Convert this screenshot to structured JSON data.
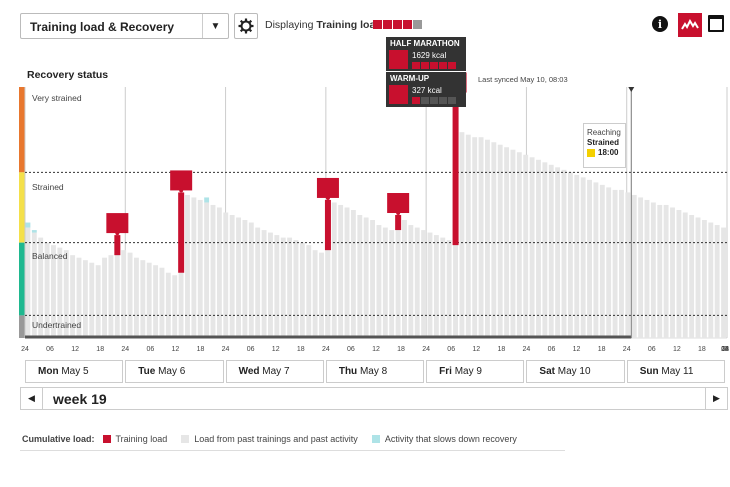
{
  "header": {
    "dropdown_label": "Training load & Recovery",
    "displaying_prefix": "Displaying",
    "displaying_value": "Training load",
    "display_level": 4,
    "display_level_max": 5,
    "colors": {
      "accent": "#c8102e",
      "inactive": "#999999"
    }
  },
  "chart_data": {
    "type": "bar",
    "title": "Recovery status",
    "last_synced": "Last synced May 10, 08:03",
    "zones": [
      "Very strained",
      "Strained",
      "Balanced",
      "Undertrained"
    ],
    "zone_colors": [
      "#e8772e",
      "#f4e04a",
      "#1fb88f",
      "#999999"
    ],
    "x_tick_labels": [
      "24",
      "06",
      "12",
      "18",
      "24",
      "06",
      "12",
      "18",
      "24",
      "06",
      "12",
      "18",
      "24",
      "06",
      "12",
      "18",
      "24",
      "06",
      "12",
      "18",
      "24",
      "06",
      "12",
      "18",
      "24",
      "06",
      "12",
      "18",
      "24",
      "06",
      "12",
      "18",
      "2"
    ],
    "days": [
      "Mon May 5",
      "Tue May 6",
      "Wed May 7",
      "Thu May 8",
      "Fri May 9",
      "Sat May 10",
      "Sun May 11"
    ],
    "ylim": [
      0,
      100
    ],
    "series": [
      {
        "name": "Load from past trainings and past activity",
        "color": "#e6e6e6",
        "values": [
          44,
          42,
          40,
          38,
          37,
          36,
          35,
          33,
          32,
          31,
          30,
          29,
          32,
          33,
          36,
          35,
          34,
          32,
          31,
          30,
          29,
          28,
          26,
          25,
          55,
          57,
          56,
          55,
          54,
          53,
          52,
          50,
          49,
          48,
          47,
          46,
          44,
          43,
          42,
          41,
          40,
          40,
          39,
          38,
          37,
          35,
          34,
          55,
          54,
          53,
          52,
          51,
          49,
          48,
          47,
          45,
          44,
          43,
          48,
          47,
          45,
          44,
          43,
          42,
          41,
          40,
          39,
          83,
          82,
          81,
          80,
          80,
          79,
          78,
          77,
          76,
          75,
          74,
          73,
          72,
          71,
          70,
          69,
          68,
          67,
          66,
          65,
          64,
          63,
          62,
          61,
          60,
          59,
          59,
          58,
          57,
          56,
          55,
          54,
          53,
          53,
          52,
          51,
          50,
          49,
          48,
          47,
          46,
          45,
          44
        ]
      },
      {
        "name": "Activity that slows down recovery",
        "color": "#aee3e7",
        "points": [
          {
            "x": 0,
            "value": 44,
            "extra": 2
          },
          {
            "x": 1,
            "value": 42,
            "extra": 1
          },
          {
            "x": 28,
            "value": 54,
            "extra": 2
          }
        ]
      }
    ],
    "training_sessions": [
      {
        "x": 14,
        "base": 33,
        "top": 41,
        "icon": "training-icon"
      },
      {
        "x": 24,
        "base": 26,
        "top": 58,
        "icon": "training-icon"
      },
      {
        "x": 47,
        "base": 35,
        "top": 55,
        "icon": "training-icon"
      },
      {
        "x": 58,
        "base": 43,
        "top": 49,
        "icon": "training-icon"
      },
      {
        "x": 67,
        "base": 37,
        "top": 97,
        "icon": "training-icon"
      }
    ],
    "now_index": 95,
    "strained_threshold_y": 66,
    "balanced_threshold_y": 38,
    "undertrained_threshold_y": 9
  },
  "popups": [
    {
      "title": "HALF MARATHON",
      "kcal": "1629 kcal",
      "level": 5
    },
    {
      "title": "WARM-UP",
      "kcal": "327 kcal",
      "level": 1
    }
  ],
  "reaching": {
    "line1": "Reaching",
    "line2": "Strained",
    "time": "18:00"
  },
  "week_nav": {
    "label": "week 19"
  },
  "legend": {
    "title": "Cumulative load:",
    "items": [
      {
        "label": "Training load",
        "color": "#c8102e"
      },
      {
        "label": "Load from past trainings and past activity",
        "color": "#e6e6e6"
      },
      {
        "label": "Activity that slows down recovery",
        "color": "#aee3e7"
      }
    ]
  }
}
